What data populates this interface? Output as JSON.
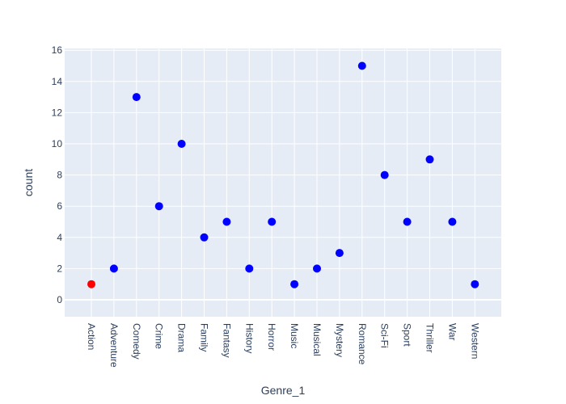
{
  "chart_data": {
    "type": "scatter",
    "title": "",
    "xlabel": "Genre_1",
    "ylabel": "count",
    "ylim": [
      0,
      16
    ],
    "yticks": [
      0,
      2,
      4,
      6,
      8,
      10,
      12,
      14,
      16
    ],
    "grid": true,
    "legend": "none",
    "categories": [
      "Action",
      "Adventure",
      "Comedy",
      "Crime",
      "Drama",
      "Family",
      "Fantasy",
      "History",
      "Horror",
      "Music",
      "Musical",
      "Mystery",
      "Romance",
      "Sci-Fi",
      "Sport",
      "Thriller",
      "War",
      "Western"
    ],
    "values": [
      1,
      2,
      13,
      6,
      10,
      4,
      5,
      2,
      5,
      1,
      2,
      3,
      15,
      8,
      5,
      9,
      5,
      1
    ],
    "colors": [
      "#ff0000",
      "#0000ff",
      "#0000ff",
      "#0000ff",
      "#0000ff",
      "#0000ff",
      "#0000ff",
      "#0000ff",
      "#0000ff",
      "#0000ff",
      "#0000ff",
      "#0000ff",
      "#0000ff",
      "#0000ff",
      "#0000ff",
      "#0000ff",
      "#0000ff",
      "#0000ff"
    ],
    "plot_background": "#e5ecf6",
    "grid_color": "#ffffff"
  }
}
